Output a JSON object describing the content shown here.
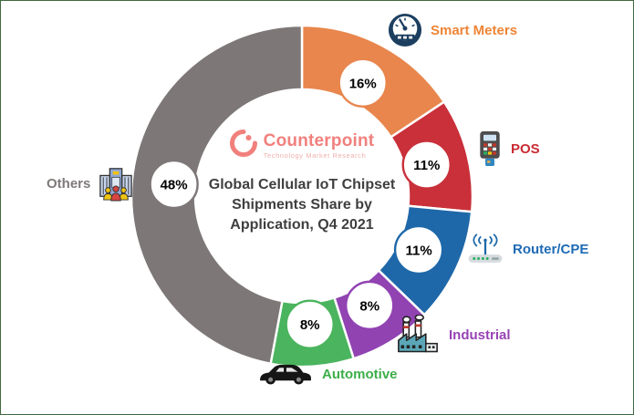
{
  "logo": {
    "name": "Counterpoint",
    "tagline": "Technology Market Research",
    "name_color": "#F1807D",
    "tagline_color": "#EFB0AC"
  },
  "chart_data": {
    "type": "pie",
    "subtype": "donut",
    "title": "Global Cellular IoT Chipset Shipments Share by Application, Q4 2021",
    "unit": "%",
    "direction": "clockwise",
    "start_angle_deg": 0,
    "series": [
      {
        "label": "Smart Meters",
        "value": 16,
        "color": "#E8864D",
        "label_color": "#EE8435",
        "icon": "gauge-icon"
      },
      {
        "label": "POS",
        "value": 11,
        "color": "#C9303A",
        "label_color": "#C92B33",
        "icon": "pos-terminal-icon"
      },
      {
        "label": "Router/CPE",
        "value": 11,
        "color": "#1E68A9",
        "label_color": "#1F6BB5",
        "icon": "router-icon"
      },
      {
        "label": "Industrial",
        "value": 8,
        "color": "#9143B2",
        "label_color": "#9643B5",
        "icon": "factory-icon"
      },
      {
        "label": "Automotive",
        "value": 8,
        "color": "#4BB45E",
        "label_color": "#3CAE49",
        "icon": "car-icon"
      },
      {
        "label": "Others",
        "value": 48,
        "color": "#7D7777",
        "label_color": "#7F7979",
        "icon": "building-people-icon"
      }
    ]
  }
}
